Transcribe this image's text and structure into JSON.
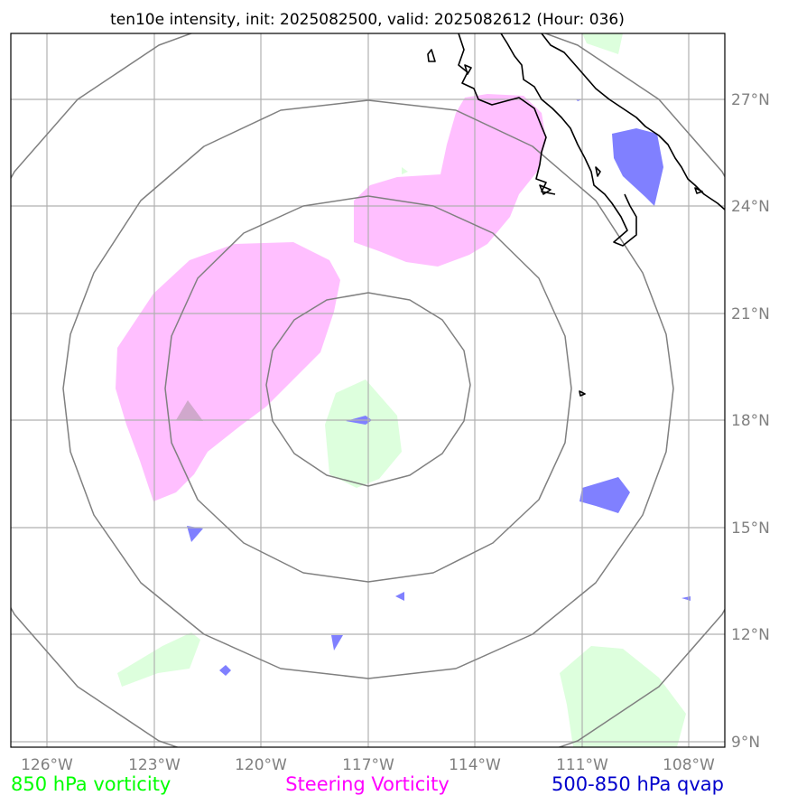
{
  "title": "ten10e intensity, init: 2025082500, valid: 2025082612 (Hour: 036)",
  "x_ticks": [
    "126°W",
    "123°W",
    "120°W",
    "117°W",
    "114°W",
    "111°W",
    "108°W"
  ],
  "y_ticks": [
    "27°N",
    "24°N",
    "21°N",
    "18°N",
    "15°N",
    "12°N",
    "9°N"
  ],
  "legend": [
    {
      "label": "850 hPa vorticity",
      "color": "#00ff00"
    },
    {
      "label": "Steering Vorticity",
      "color": "#ff00ff"
    },
    {
      "label": "500-850 hPa qvap",
      "color": "#0000cc"
    }
  ],
  "colors": {
    "steering_fill": "#ffbfff",
    "vort850_fill": "#ddffdd",
    "qvap_fill": "#8080ff",
    "range_ring": "#808080",
    "gridline": "#b0b0b0",
    "coastline": "#000000"
  },
  "map": {
    "center_lon": -117.0,
    "center_lat": 18.0,
    "extent_lon": [
      -127.0,
      -107.0
    ],
    "extent_lat": [
      8.9,
      28.9
    ]
  }
}
